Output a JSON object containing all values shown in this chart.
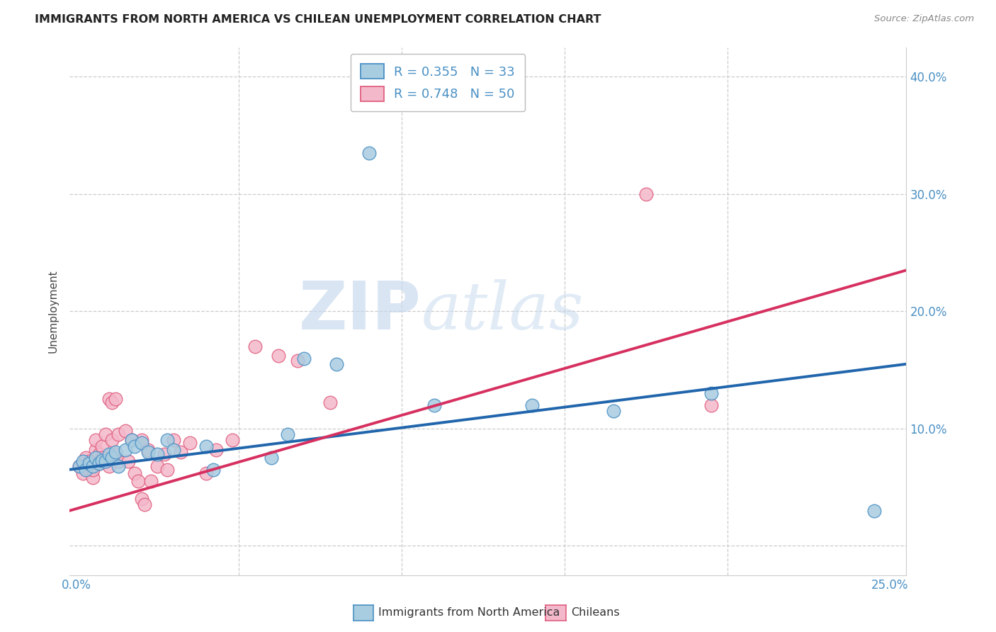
{
  "title": "IMMIGRANTS FROM NORTH AMERICA VS CHILEAN UNEMPLOYMENT CORRELATION CHART",
  "source": "Source: ZipAtlas.com",
  "ylabel": "Unemployment",
  "xlim": [
    -0.002,
    0.255
  ],
  "ylim": [
    -0.025,
    0.425
  ],
  "xtick_positions": [
    0.0,
    0.05,
    0.1,
    0.15,
    0.2,
    0.25
  ],
  "xticklabels": [
    "0.0%",
    "",
    "",
    "",
    "",
    "25.0%"
  ],
  "ytick_positions": [
    0.0,
    0.1,
    0.2,
    0.3,
    0.4
  ],
  "yticklabels_right": [
    "",
    "10.0%",
    "20.0%",
    "30.0%",
    "40.0%"
  ],
  "watermark_zip": "ZIP",
  "watermark_atlas": "atlas",
  "legend_label1": "R = 0.355   N = 33",
  "legend_label2": "R = 0.748   N = 50",
  "bottom_legend1": "Immigrants from North America",
  "bottom_legend2": "Chileans",
  "blue_face": "#a8cce0",
  "pink_face": "#f4b8cb",
  "blue_edge": "#4a90c4",
  "pink_edge": "#e06080",
  "blue_line": "#2166ac",
  "pink_line": "#d63060",
  "axis_tick_color": "#4a90c4",
  "grid_color": "#cccccc",
  "blue_points": [
    [
      0.001,
      0.068
    ],
    [
      0.002,
      0.072
    ],
    [
      0.003,
      0.065
    ],
    [
      0.004,
      0.07
    ],
    [
      0.005,
      0.068
    ],
    [
      0.006,
      0.075
    ],
    [
      0.007,
      0.07
    ],
    [
      0.008,
      0.073
    ],
    [
      0.009,
      0.072
    ],
    [
      0.01,
      0.078
    ],
    [
      0.011,
      0.075
    ],
    [
      0.012,
      0.08
    ],
    [
      0.013,
      0.068
    ],
    [
      0.015,
      0.082
    ],
    [
      0.017,
      0.09
    ],
    [
      0.018,
      0.085
    ],
    [
      0.02,
      0.088
    ],
    [
      0.022,
      0.08
    ],
    [
      0.025,
      0.078
    ],
    [
      0.028,
      0.09
    ],
    [
      0.03,
      0.082
    ],
    [
      0.04,
      0.085
    ],
    [
      0.042,
      0.065
    ],
    [
      0.06,
      0.075
    ],
    [
      0.065,
      0.095
    ],
    [
      0.07,
      0.16
    ],
    [
      0.08,
      0.155
    ],
    [
      0.09,
      0.335
    ],
    [
      0.11,
      0.12
    ],
    [
      0.14,
      0.12
    ],
    [
      0.165,
      0.115
    ],
    [
      0.195,
      0.13
    ],
    [
      0.245,
      0.03
    ]
  ],
  "pink_points": [
    [
      0.001,
      0.068
    ],
    [
      0.002,
      0.062
    ],
    [
      0.002,
      0.07
    ],
    [
      0.003,
      0.075
    ],
    [
      0.003,
      0.068
    ],
    [
      0.004,
      0.072
    ],
    [
      0.004,
      0.065
    ],
    [
      0.005,
      0.058
    ],
    [
      0.005,
      0.065
    ],
    [
      0.006,
      0.082
    ],
    [
      0.006,
      0.09
    ],
    [
      0.007,
      0.07
    ],
    [
      0.007,
      0.078
    ],
    [
      0.008,
      0.085
    ],
    [
      0.008,
      0.075
    ],
    [
      0.009,
      0.072
    ],
    [
      0.009,
      0.095
    ],
    [
      0.01,
      0.068
    ],
    [
      0.01,
      0.125
    ],
    [
      0.011,
      0.122
    ],
    [
      0.011,
      0.09
    ],
    [
      0.012,
      0.078
    ],
    [
      0.012,
      0.125
    ],
    [
      0.013,
      0.095
    ],
    [
      0.013,
      0.072
    ],
    [
      0.015,
      0.098
    ],
    [
      0.016,
      0.072
    ],
    [
      0.017,
      0.09
    ],
    [
      0.018,
      0.062
    ],
    [
      0.019,
      0.055
    ],
    [
      0.02,
      0.09
    ],
    [
      0.02,
      0.04
    ],
    [
      0.021,
      0.035
    ],
    [
      0.022,
      0.082
    ],
    [
      0.023,
      0.055
    ],
    [
      0.025,
      0.068
    ],
    [
      0.027,
      0.078
    ],
    [
      0.028,
      0.065
    ],
    [
      0.03,
      0.09
    ],
    [
      0.032,
      0.08
    ],
    [
      0.035,
      0.088
    ],
    [
      0.04,
      0.062
    ],
    [
      0.043,
      0.082
    ],
    [
      0.048,
      0.09
    ],
    [
      0.055,
      0.17
    ],
    [
      0.062,
      0.162
    ],
    [
      0.068,
      0.158
    ],
    [
      0.078,
      0.122
    ],
    [
      0.175,
      0.3
    ],
    [
      0.195,
      0.12
    ]
  ],
  "blue_trend_start_y": 0.065,
  "blue_trend_end_y": 0.155,
  "pink_trend_start_y": 0.03,
  "pink_trend_end_y": 0.235
}
